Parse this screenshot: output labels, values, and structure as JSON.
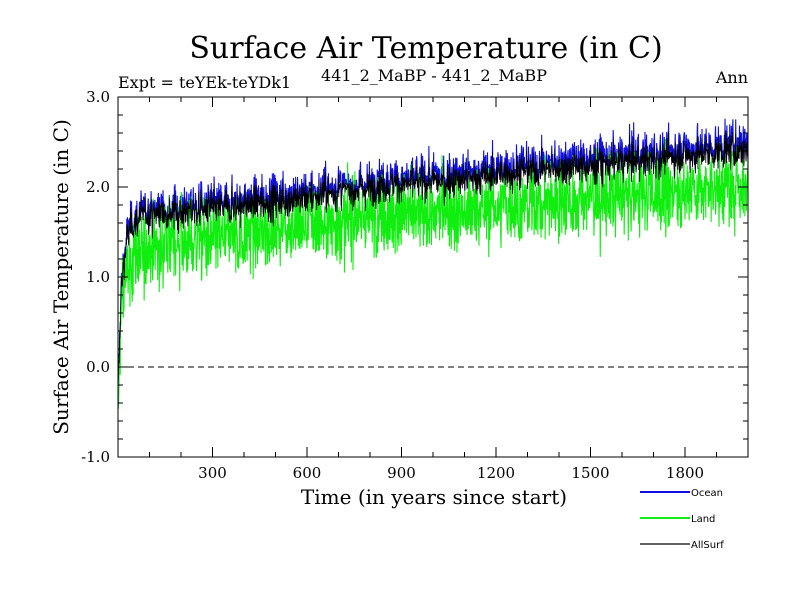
{
  "chart_data": {
    "type": "line",
    "title": "Surface Air Temperature (in C)",
    "subtitle_left": "Expt = teYEk-teYDk1",
    "subtitle_center": "441_2_MaBP - 441_2_MaBP",
    "subtitle_right": "Ann",
    "xlabel": "Time (in years since start)",
    "ylabel": "Surface Air Temperature (in C)",
    "xlim": [
      0,
      2000
    ],
    "ylim": [
      -1.0,
      3.0
    ],
    "xticks": [
      300,
      600,
      900,
      1200,
      1500,
      1800
    ],
    "xtick_labels": [
      "300",
      "600",
      "900",
      "1200",
      "1500",
      "1800"
    ],
    "yticks": [
      -1.0,
      0.0,
      1.0,
      2.0,
      3.0
    ],
    "ytick_labels": [
      "-1.0",
      "0.0",
      "1.0",
      "2.0",
      "3.0"
    ],
    "reference_line": 0.0,
    "x": [
      0,
      10,
      20,
      30,
      50,
      75,
      100,
      150,
      200,
      250,
      300,
      400,
      500,
      600,
      700,
      800,
      900,
      1000,
      1100,
      1200,
      1300,
      1400,
      1500,
      1600,
      1700,
      1800,
      1900,
      2000
    ],
    "series": [
      {
        "name": "Ocean",
        "color": "#1010e0",
        "values": [
          -0.3,
          0.9,
          1.25,
          1.5,
          1.65,
          1.72,
          1.75,
          1.78,
          1.78,
          1.8,
          1.82,
          1.85,
          1.9,
          1.95,
          2.0,
          2.05,
          2.1,
          2.12,
          2.15,
          2.2,
          2.25,
          2.28,
          2.3,
          2.35,
          2.38,
          2.42,
          2.45,
          2.5
        ],
        "noise": 0.12
      },
      {
        "name": "Land",
        "color": "#10ee10",
        "values": [
          -0.5,
          0.6,
          0.9,
          1.1,
          1.2,
          1.28,
          1.32,
          1.35,
          1.38,
          1.4,
          1.42,
          1.48,
          1.52,
          1.58,
          1.62,
          1.66,
          1.7,
          1.72,
          1.75,
          1.78,
          1.82,
          1.85,
          1.88,
          1.9,
          1.93,
          1.96,
          2.0,
          2.02
        ],
        "noise": 0.22
      },
      {
        "name": "AllSurf",
        "color": "#000000",
        "values": [
          -0.35,
          0.85,
          1.2,
          1.45,
          1.6,
          1.67,
          1.7,
          1.72,
          1.72,
          1.74,
          1.76,
          1.8,
          1.84,
          1.89,
          1.94,
          1.99,
          2.03,
          2.05,
          2.08,
          2.13,
          2.18,
          2.21,
          2.23,
          2.28,
          2.31,
          2.35,
          2.38,
          2.42
        ],
        "noise": 0.12
      }
    ],
    "legend": [
      "Ocean",
      "Land",
      "AllSurf"
    ],
    "legend_position": "bottom-right"
  }
}
